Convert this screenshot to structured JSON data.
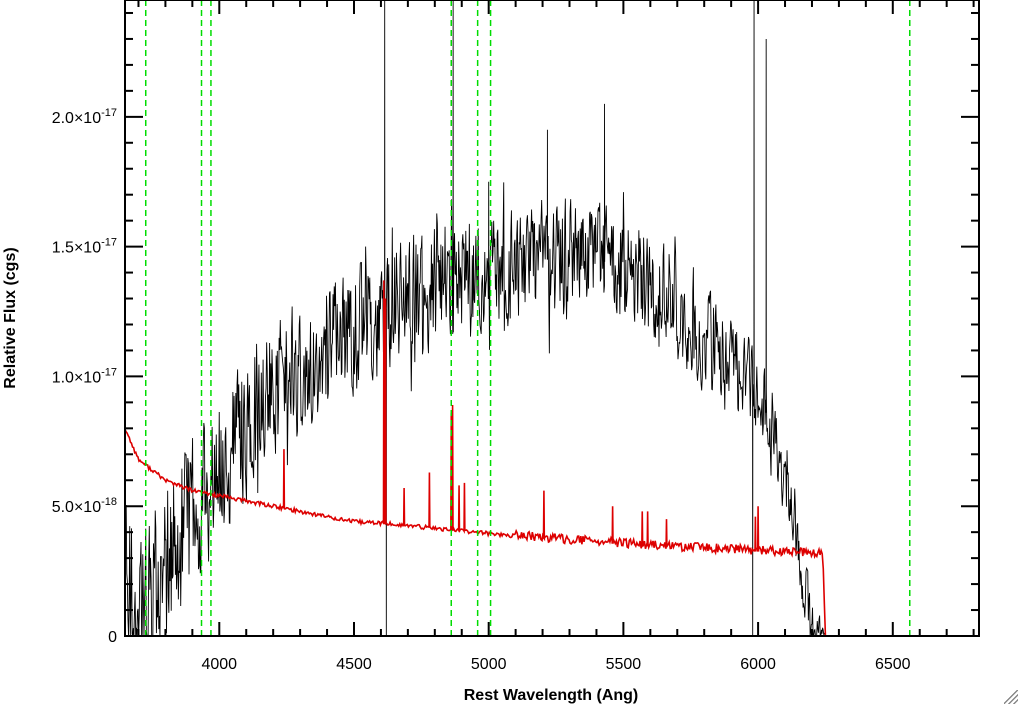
{
  "chart_data": {
    "type": "line",
    "title": "",
    "xlabel": "Rest Wavelength (Ang)",
    "ylabel": "Relative Flux (cgs)",
    "xlim": [
      3650,
      6820
    ],
    "ylim": [
      0,
      2.45e-17
    ],
    "x_ticks": [
      {
        "value": 4000,
        "label": "4000"
      },
      {
        "value": 4500,
        "label": "4500"
      },
      {
        "value": 5000,
        "label": "5000"
      },
      {
        "value": 5500,
        "label": "5500"
      },
      {
        "value": 6000,
        "label": "6000"
      },
      {
        "value": 6500,
        "label": "6500"
      }
    ],
    "y_ticks": [
      {
        "value": 0,
        "mantissa": "0",
        "exponent": ""
      },
      {
        "value": 5e-18,
        "mantissa": "5.0×10",
        "exponent": "-18"
      },
      {
        "value": 1e-17,
        "mantissa": "1.0×10",
        "exponent": "-17"
      },
      {
        "value": 1.5e-17,
        "mantissa": "1.5×10",
        "exponent": "-17"
      },
      {
        "value": 2e-17,
        "mantissa": "2.0×10",
        "exponent": "-17"
      }
    ],
    "x_minor_step": 100,
    "y_minor_step": 1e-18,
    "grid": false,
    "colors": {
      "observed": "#000000",
      "model": "#dd0000",
      "lines": "#00dd00"
    },
    "series": [
      {
        "name": "",
        "color": "#000000",
        "continuum": {
          "x": [
            3650,
            3700,
            3750,
            3800,
            3900,
            4000,
            4100,
            4200,
            4300,
            4400,
            4500,
            4600,
            4700,
            4800,
            4900,
            5000,
            5100,
            5200,
            5300,
            5400,
            5500,
            5600,
            5700,
            5800,
            5900,
            6000,
            6050,
            6100,
            6150,
            6200,
            6250
          ],
          "y": [
            1.5e-18,
            1.5e-18,
            1.8e-18,
            2.5e-18,
            4.5e-18,
            6.5e-18,
            8e-18,
            9.5e-18,
            1.05e-17,
            1.12e-17,
            1.18e-17,
            1.25e-17,
            1.3e-17,
            1.35e-17,
            1.38e-17,
            1.4e-17,
            1.42e-17,
            1.45e-17,
            1.45e-17,
            1.45e-17,
            1.42e-17,
            1.35e-17,
            1.25e-17,
            1.15e-17,
            1.05e-17,
            9.5e-18,
            8e-18,
            6e-18,
            3e-18,
            5e-19,
            0
          ]
        },
        "noise_amplitude": [
          {
            "x": 3650,
            "a": 5.5e-18
          },
          {
            "x": 3950,
            "a": 5e-18
          },
          {
            "x": 4300,
            "a": 4e-18
          },
          {
            "x": 5000,
            "a": 3.6e-18
          },
          {
            "x": 5800,
            "a": 3.2e-18
          },
          {
            "x": 6200,
            "a": 2e-18
          },
          {
            "x": 6250,
            "a": 0
          }
        ],
        "spikes": [
          {
            "x": 4614,
            "y": 2.45e-17
          },
          {
            "x": 4620,
            "y": 0
          },
          {
            "x": 4868,
            "y": 2.45e-17
          },
          {
            "x": 5000,
            "y": 1.75e-17
          },
          {
            "x": 5218,
            "y": 1.95e-17
          },
          {
            "x": 5430,
            "y": 2.05e-17
          },
          {
            "x": 5985,
            "y": 2.45e-17
          },
          {
            "x": 5980,
            "y": 0
          },
          {
            "x": 6030,
            "y": 2.3e-17
          }
        ]
      },
      {
        "name": "",
        "color": "#dd0000",
        "continuum": {
          "x": [
            3650,
            3700,
            3750,
            3800,
            3900,
            4000,
            4100,
            4200,
            4300,
            4400,
            4500,
            4600,
            4700,
            4800,
            4900,
            5000,
            5200,
            5400,
            5600,
            5800,
            6000,
            6200,
            6240,
            6250,
            6820
          ],
          "y": [
            8e-18,
            6.8e-18,
            6.4e-18,
            6e-18,
            5.6e-18,
            5.4e-18,
            5.2e-18,
            5e-18,
            4.8e-18,
            4.6e-18,
            4.4e-18,
            4.35e-18,
            4.25e-18,
            4.15e-18,
            4.05e-18,
            3.95e-18,
            3.75e-18,
            3.6e-18,
            3.45e-18,
            3.35e-18,
            3.25e-18,
            3.15e-18,
            3.1e-18,
            0,
            0
          ]
        },
        "emission_lines": [
          {
            "x": 4240,
            "y": 7.2e-18
          },
          {
            "x": 4611,
            "y": 1.37e-17
          },
          {
            "x": 4617,
            "y": 1.3e-17
          },
          {
            "x": 4686,
            "y": 5.7e-18
          },
          {
            "x": 4780,
            "y": 6.3e-18
          },
          {
            "x": 4861,
            "y": 8.6e-18
          },
          {
            "x": 4866,
            "y": 8.9e-18
          },
          {
            "x": 4890,
            "y": 5.8e-18
          },
          {
            "x": 4910,
            "y": 5.9e-18
          },
          {
            "x": 5205,
            "y": 5.6e-18
          },
          {
            "x": 5460,
            "y": 5e-18
          },
          {
            "x": 5570,
            "y": 4.8e-18
          },
          {
            "x": 5590,
            "y": 4.8e-18
          },
          {
            "x": 5660,
            "y": 4.5e-18
          },
          {
            "x": 5990,
            "y": 4.6e-18
          },
          {
            "x": 6000,
            "y": 5e-18
          }
        ]
      }
    ],
    "marker_lines": [
      3727,
      3934,
      3969,
      4861,
      4959,
      5007,
      6563
    ]
  }
}
